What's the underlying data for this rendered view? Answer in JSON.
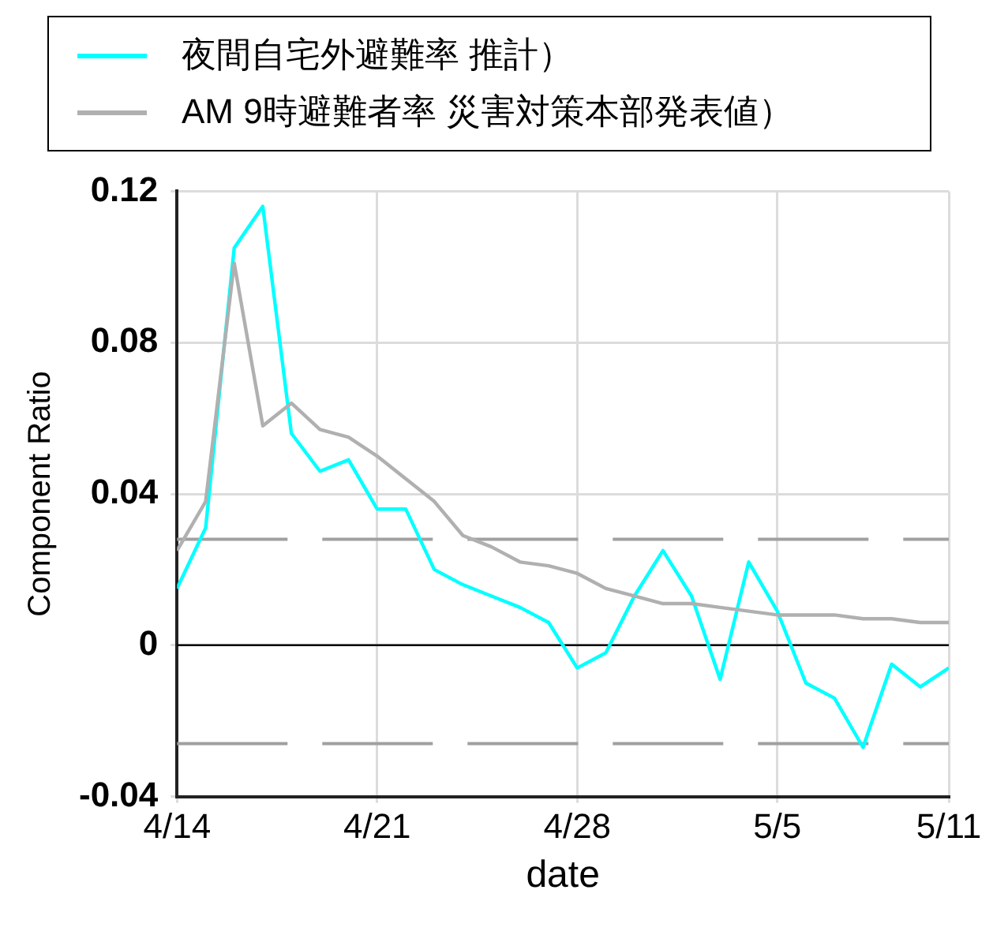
{
  "chart_data": {
    "type": "line",
    "xlabel": "date",
    "ylabel": "Component Ratio",
    "x": [
      "--04-14",
      "--04-15",
      "--04-16",
      "--04-17",
      "--04-18",
      "--04-19",
      "--04-20",
      "--04-21",
      "--04-22",
      "--04-23",
      "--04-24",
      "--04-25",
      "--04-26",
      "--04-27",
      "--04-28",
      "--04-29",
      "--04-30",
      "--05-01",
      "--05-02",
      "--05-03",
      "--05-04",
      "--05-05",
      "--05-06",
      "--05-07",
      "--05-08",
      "--05-09",
      "--05-10",
      "--05-11"
    ],
    "series": [
      {
        "name": "夜間自宅外避難率 推計）",
        "color": "#00ffff",
        "values": [
          0.015,
          0.031,
          0.105,
          0.116,
          0.056,
          0.046,
          0.049,
          0.036,
          0.036,
          0.02,
          0.016,
          0.013,
          0.01,
          0.006,
          -0.006,
          -0.002,
          0.013,
          0.025,
          0.013,
          -0.009,
          0.022,
          0.009,
          -0.01,
          -0.014,
          -0.027,
          -0.005,
          -0.011,
          -0.006
        ]
      },
      {
        "name": "AM 9時避難者率  災害対策本部発表値）",
        "color": "#b0b0b0",
        "values": [
          0.025,
          0.038,
          0.101,
          0.058,
          0.064,
          0.057,
          0.055,
          0.05,
          0.044,
          0.038,
          0.029,
          0.026,
          0.022,
          0.021,
          0.019,
          0.015,
          0.013,
          0.011,
          0.011,
          0.01,
          0.009,
          0.008,
          0.008,
          0.008,
          0.007,
          0.007,
          0.006,
          0.006
        ]
      }
    ],
    "xlim": [
      "--04-14",
      "--05-11"
    ],
    "xticks": [
      {
        "value": "--04-14",
        "label": "4/14"
      },
      {
        "value": "--04-21",
        "label": "4/21"
      },
      {
        "value": "--04-28",
        "label": "4/28"
      },
      {
        "value": "--05-05",
        "label": "5/5"
      },
      {
        "value": "--05-11",
        "label": "5/11"
      }
    ],
    "ylim": [
      -0.04,
      0.12
    ],
    "yticks": [
      -0.04,
      0,
      0.04,
      0.08,
      0.12
    ],
    "ref_lines": [
      {
        "axis": "y",
        "value": 0,
        "color": "#000000",
        "line_style": "solid"
      },
      {
        "axis": "y",
        "value": 0.028,
        "color": "#a0a0a0",
        "line_style": "dashed"
      },
      {
        "axis": "y",
        "value": -0.026,
        "color": "#a0a0a0",
        "line_style": "dashed"
      }
    ],
    "grid": true,
    "legend": "top",
    "marker": "none",
    "line_style": "solid"
  }
}
